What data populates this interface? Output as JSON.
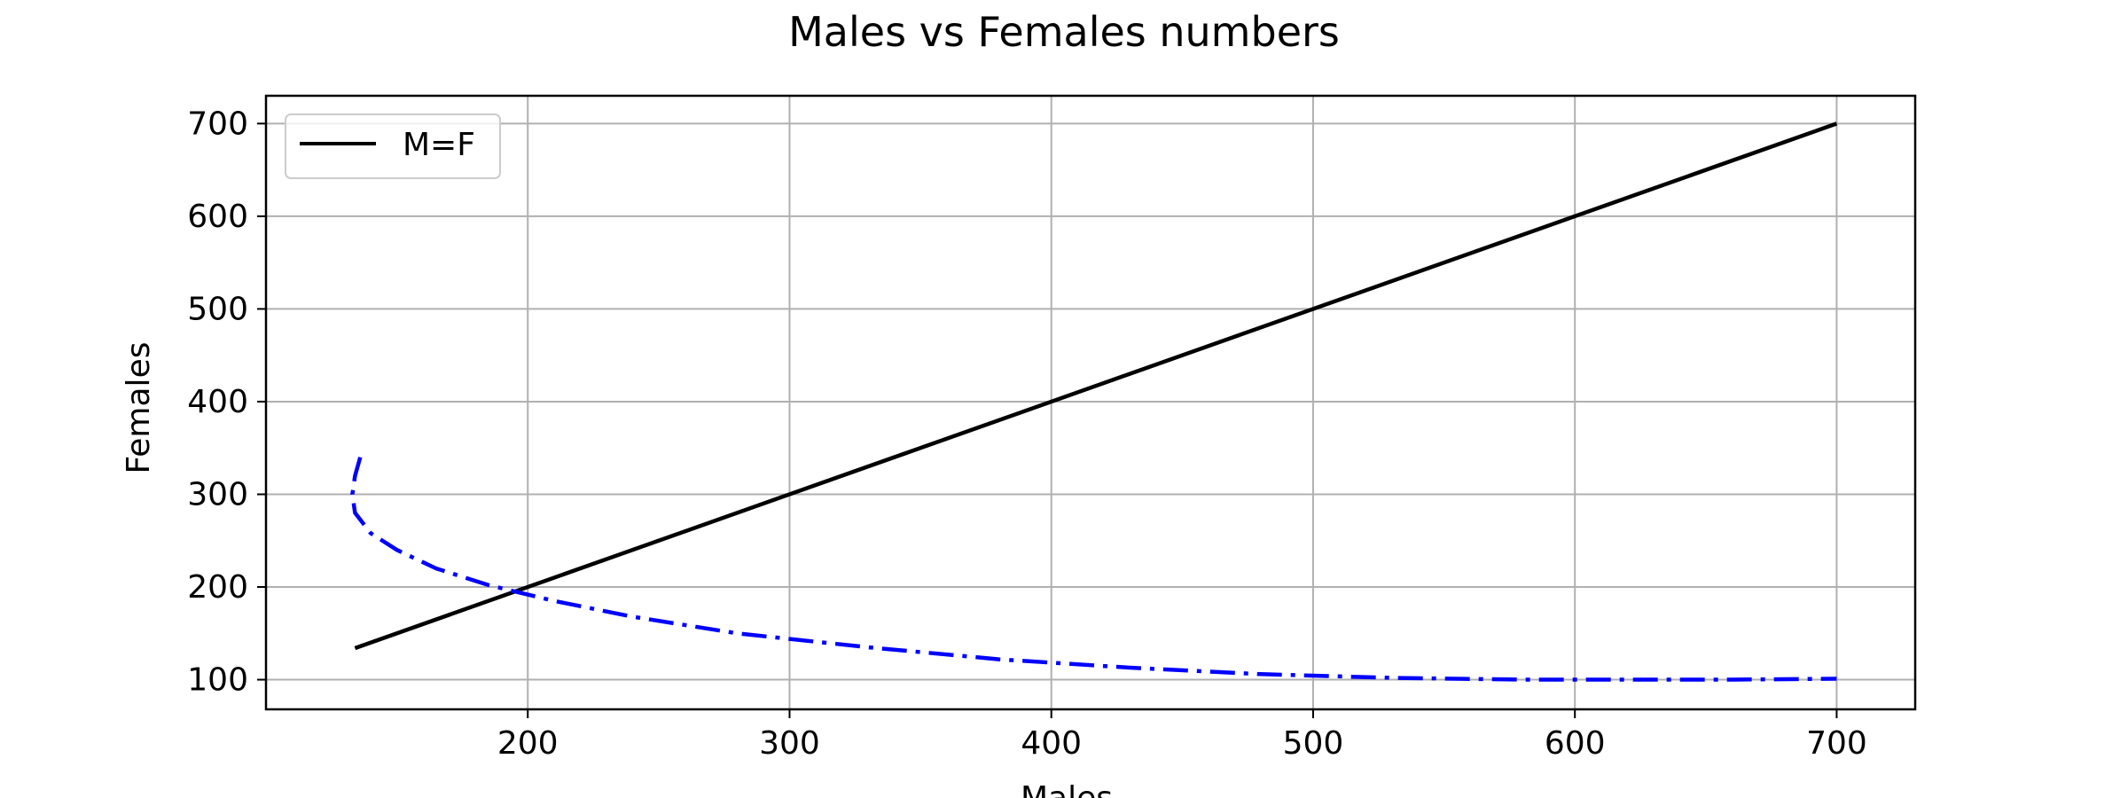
{
  "chart_data": {
    "type": "line",
    "title": "Males vs Females numbers",
    "xlabel": "Males",
    "ylabel": "Females",
    "xlim": [
      100,
      730
    ],
    "ylim": [
      68,
      730
    ],
    "xticks": [
      200,
      300,
      400,
      500,
      600,
      700
    ],
    "yticks": [
      100,
      200,
      300,
      400,
      500,
      600,
      700
    ],
    "grid": true,
    "legend": {
      "placement": "upper-left",
      "entries": [
        "M=F"
      ]
    },
    "series": [
      {
        "name": "M=F",
        "color": "#000000",
        "style": "solid",
        "x": [
          134,
          700
        ],
        "y": [
          134,
          700
        ]
      },
      {
        "color": "#0000ff",
        "style": "dashdot",
        "x": [
          136,
          134,
          133,
          134,
          140,
          150,
          165,
          185,
          210,
          240,
          280,
          330,
          380,
          430,
          480,
          530,
          580,
          620,
          660,
          700
        ],
        "y": [
          340,
          320,
          300,
          280,
          258,
          240,
          220,
          202,
          185,
          168,
          150,
          135,
          122,
          113,
          106,
          102,
          100,
          100,
          100,
          101
        ]
      }
    ]
  }
}
